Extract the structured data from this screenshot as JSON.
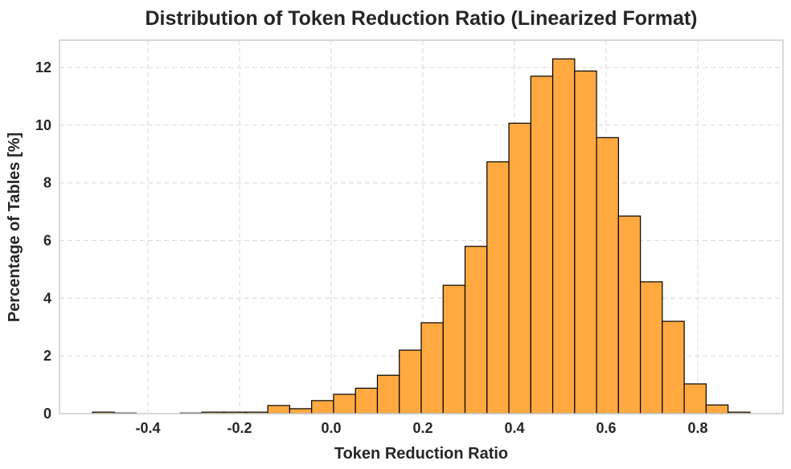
{
  "chart_data": {
    "type": "bar",
    "subtype": "histogram",
    "title": "Distribution of Token Reduction Ratio (Linearized Format)",
    "xlabel": "Token Reduction Ratio",
    "ylabel": "Percentage of Tables [%]",
    "xlim": [
      -0.593,
      0.986
    ],
    "ylim": [
      0,
      12.95
    ],
    "xticks": [
      "-0.4",
      "-0.2",
      "0.0",
      "0.2",
      "0.4",
      "0.6",
      "0.8"
    ],
    "xtick_values": [
      -0.4,
      -0.2,
      0.0,
      0.2,
      0.4,
      0.6,
      0.8
    ],
    "yticks": [
      "0",
      "2",
      "4",
      "6",
      "8",
      "10",
      "12"
    ],
    "ytick_values": [
      0,
      2,
      4,
      6,
      8,
      10,
      12
    ],
    "bin_start": -0.521,
    "bin_end": 0.914,
    "values": [
      0.05,
      0.02,
      0,
      0,
      0.02,
      0.05,
      0.05,
      0.05,
      0.28,
      0.17,
      0.45,
      0.67,
      0.88,
      1.33,
      2.2,
      3.15,
      4.45,
      5.8,
      8.73,
      10.07,
      11.7,
      12.3,
      11.88,
      9.57,
      6.85,
      4.57,
      3.2,
      1.03,
      0.3,
      0.05
    ],
    "grid": true,
    "colors": {
      "bar_fill": "#ffa940",
      "bar_edge": "#000000",
      "grid": "#dddddd",
      "frame": "#cccccc"
    }
  }
}
